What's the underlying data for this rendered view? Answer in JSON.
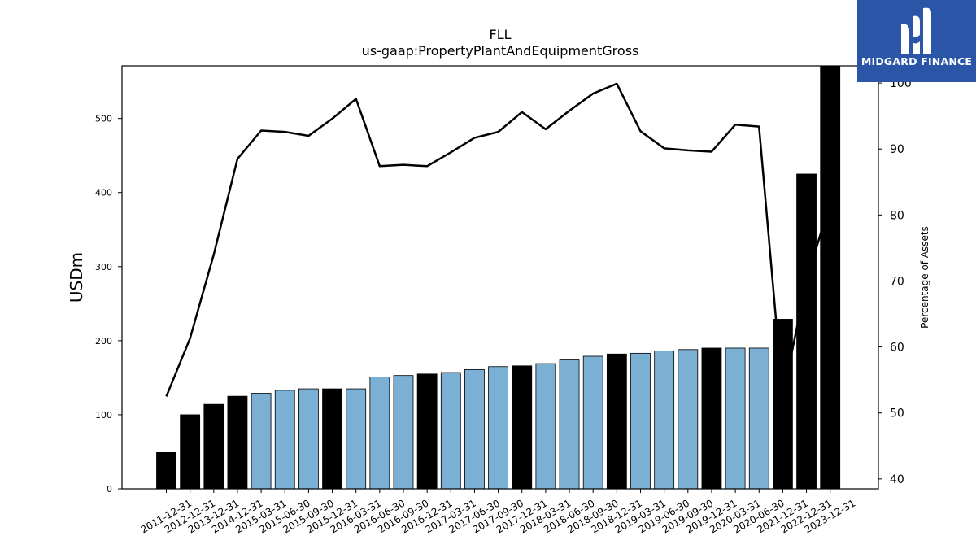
{
  "chart_data": {
    "type": "bar",
    "title": "FLL",
    "subtitle": "us-gaap:PropertyPlantAndEquipmentGross",
    "ylabel": "USDm",
    "y2label": "Percentage of Assets",
    "ylim": [
      0,
      571
    ],
    "y2lim": [
      38.5,
      102.6
    ],
    "yticks": [
      0,
      100,
      200,
      300,
      400,
      500
    ],
    "y2ticks": [
      40,
      50,
      60,
      70,
      80,
      90,
      100
    ],
    "categories": [
      "2011-12-31",
      "2012-12-31",
      "2013-12-31",
      "2014-12-31",
      "2015-03-31",
      "2015-06-30",
      "2015-09-30",
      "2015-12-31",
      "2016-03-31",
      "2016-06-30",
      "2016-09-30",
      "2016-12-31",
      "2017-03-31",
      "2017-06-30",
      "2017-09-30",
      "2017-12-31",
      "2018-03-31",
      "2018-06-30",
      "2018-09-30",
      "2018-12-31",
      "2019-03-31",
      "2019-06-30",
      "2019-09-30",
      "2019-12-31",
      "2020-03-31",
      "2020-06-30",
      "2021-12-31",
      "2022-12-31",
      "2023-12-31"
    ],
    "series": [
      {
        "kind": "bar",
        "values": [
          49,
          100,
          114,
          125,
          129,
          133,
          135,
          135,
          135,
          151,
          153,
          155,
          157,
          161,
          165,
          166,
          169,
          174,
          179,
          182,
          183,
          186,
          188,
          190,
          190,
          190,
          229,
          425,
          571
        ],
        "annual": [
          true,
          true,
          true,
          true,
          false,
          false,
          false,
          true,
          false,
          false,
          false,
          true,
          false,
          false,
          false,
          true,
          false,
          false,
          false,
          true,
          false,
          false,
          false,
          true,
          false,
          false,
          true,
          true,
          true
        ]
      },
      {
        "kind": "line",
        "axis": "right",
        "values": [
          52.5,
          61.3,
          74,
          88.5,
          92.8,
          92.6,
          92,
          94.6,
          97.6,
          87.4,
          87.6,
          87.4,
          89.5,
          91.7,
          92.6,
          95.6,
          93,
          95.8,
          98.4,
          99.9,
          92.7,
          90.1,
          89.8,
          89.6,
          93.7,
          93.4,
          52.5,
          70,
          82
        ]
      }
    ],
    "colors": {
      "annual_bar": "#000000",
      "quarterly_bar": "#7bafd4",
      "line": "#000000"
    },
    "grid": false,
    "legend": "none"
  },
  "logo": {
    "text": "MIDGARD FINANCE",
    "color": "#2b56a8"
  }
}
